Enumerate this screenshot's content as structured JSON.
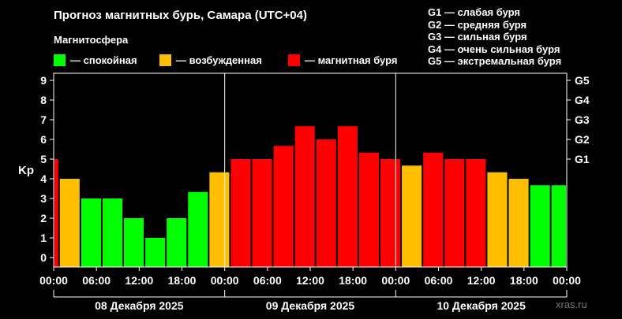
{
  "header": {
    "title": "Прогноз магнитных бурь, Самара (UTC+04)",
    "subtitle": "Магнитосфера"
  },
  "legend": [
    {
      "label": "— спокойная",
      "color": "#00ff00"
    },
    {
      "label": "— возбужденная",
      "color": "#ffbf00"
    },
    {
      "label": "— магнитная буря",
      "color": "#ff0000"
    }
  ],
  "storm_levels": [
    "G1 — слабая буря",
    "G2 — средняя буря",
    "G3 — сильная буря",
    "G4 — очень сильная буря",
    "G5 — экстремальная буря"
  ],
  "watermark": "xras.ru",
  "chart_data": {
    "type": "bar",
    "ylabel": "Kp",
    "ylim": [
      0,
      9
    ],
    "y_ticks": [
      "0",
      "1",
      "2",
      "3",
      "4",
      "5",
      "6",
      "7",
      "8",
      "9"
    ],
    "right_ticks": [
      {
        "label": "G1",
        "kp": 5
      },
      {
        "label": "G2",
        "kp": 6
      },
      {
        "label": "G3",
        "kp": 7
      },
      {
        "label": "G4",
        "kp": 8
      },
      {
        "label": "G5",
        "kp": 9
      }
    ],
    "x_ticks": [
      "00:00",
      "06:00",
      "12:00",
      "18:00",
      "00:00",
      "06:00",
      "12:00",
      "18:00",
      "00:00",
      "06:00",
      "12:00",
      "18:00",
      "00:00"
    ],
    "day_labels": [
      "08 Декабря 2025",
      "09 Декабря 2025",
      "10 Декабря 2025"
    ],
    "colors": {
      "quiet": "#00ff00",
      "active": "#ffbf00",
      "storm": "#ff0000"
    },
    "bars": [
      {
        "start_hour": 0,
        "end_hour": 0.75,
        "kp": 5.0,
        "level": "storm"
      },
      {
        "start_hour": 0.75,
        "end_hour": 3.75,
        "kp": 4.0,
        "level": "active"
      },
      {
        "start_hour": 3.75,
        "end_hour": 6.75,
        "kp": 3.0,
        "level": "quiet"
      },
      {
        "start_hour": 6.75,
        "end_hour": 9.75,
        "kp": 3.0,
        "level": "quiet"
      },
      {
        "start_hour": 9.75,
        "end_hour": 12.75,
        "kp": 2.0,
        "level": "quiet"
      },
      {
        "start_hour": 12.75,
        "end_hour": 15.75,
        "kp": 1.0,
        "level": "quiet"
      },
      {
        "start_hour": 15.75,
        "end_hour": 18.75,
        "kp": 2.0,
        "level": "quiet"
      },
      {
        "start_hour": 18.75,
        "end_hour": 21.75,
        "kp": 3.33,
        "level": "quiet"
      },
      {
        "start_hour": 21.75,
        "end_hour": 24.75,
        "kp": 4.33,
        "level": "active"
      },
      {
        "start_hour": 24.75,
        "end_hour": 27.75,
        "kp": 5.0,
        "level": "storm"
      },
      {
        "start_hour": 27.75,
        "end_hour": 30.75,
        "kp": 5.0,
        "level": "storm"
      },
      {
        "start_hour": 30.75,
        "end_hour": 33.75,
        "kp": 5.67,
        "level": "storm"
      },
      {
        "start_hour": 33.75,
        "end_hour": 36.75,
        "kp": 6.67,
        "level": "storm"
      },
      {
        "start_hour": 36.75,
        "end_hour": 39.75,
        "kp": 6.0,
        "level": "storm"
      },
      {
        "start_hour": 39.75,
        "end_hour": 42.75,
        "kp": 6.67,
        "level": "storm"
      },
      {
        "start_hour": 42.75,
        "end_hour": 45.75,
        "kp": 5.33,
        "level": "storm"
      },
      {
        "start_hour": 45.75,
        "end_hour": 48.75,
        "kp": 5.0,
        "level": "storm"
      },
      {
        "start_hour": 48.75,
        "end_hour": 51.75,
        "kp": 4.67,
        "level": "active"
      },
      {
        "start_hour": 51.75,
        "end_hour": 54.75,
        "kp": 5.33,
        "level": "storm"
      },
      {
        "start_hour": 54.75,
        "end_hour": 57.75,
        "kp": 5.0,
        "level": "storm"
      },
      {
        "start_hour": 57.75,
        "end_hour": 60.75,
        "kp": 5.0,
        "level": "storm"
      },
      {
        "start_hour": 60.75,
        "end_hour": 63.75,
        "kp": 4.33,
        "level": "active"
      },
      {
        "start_hour": 63.75,
        "end_hour": 66.75,
        "kp": 4.0,
        "level": "active"
      },
      {
        "start_hour": 66.75,
        "end_hour": 69.75,
        "kp": 3.67,
        "level": "quiet"
      },
      {
        "start_hour": 69.75,
        "end_hour": 72.0,
        "kp": 3.67,
        "level": "quiet"
      }
    ]
  }
}
